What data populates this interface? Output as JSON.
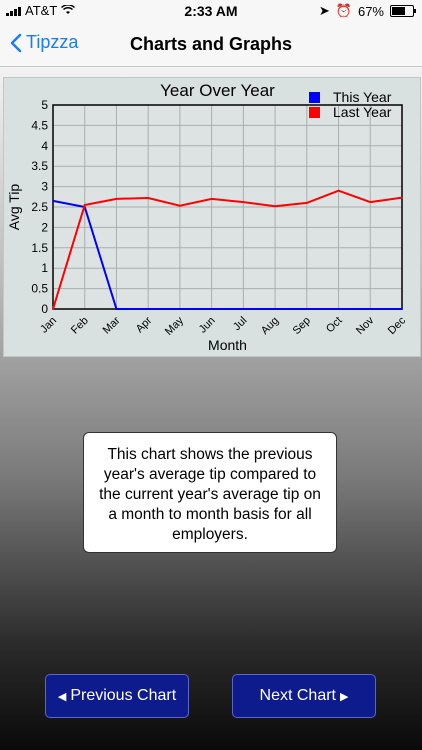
{
  "status": {
    "carrier": "AT&T",
    "time": "2:33 AM",
    "battery": "67%"
  },
  "nav": {
    "back_label": "Tipzza",
    "title": "Charts and Graphs"
  },
  "chart_data": {
    "type": "line",
    "title": "Year Over Year",
    "xlabel": "Month",
    "ylabel": "Avg Tip",
    "categories": [
      "Jan",
      "Feb",
      "Mar",
      "Apr",
      "May",
      "Jun",
      "Jul",
      "Aug",
      "Sep",
      "Oct",
      "Nov",
      "Dec"
    ],
    "ylim": [
      0,
      5
    ],
    "yticks": [
      "0",
      "0.5",
      "1",
      "1.5",
      "2",
      "2.5",
      "3",
      "3.5",
      "4",
      "4.5",
      "5"
    ],
    "grid": true,
    "legend_position": "top-right",
    "series": [
      {
        "name": "This Year",
        "color": "#0000ff",
        "values": [
          2.65,
          2.5,
          0,
          0,
          0,
          0,
          0,
          0,
          0,
          0,
          0,
          0
        ]
      },
      {
        "name": "Last Year",
        "color": "#ff0000",
        "values": [
          0,
          2.55,
          2.7,
          2.72,
          2.53,
          2.7,
          2.62,
          2.52,
          2.6,
          2.9,
          2.62,
          2.73
        ]
      }
    ]
  },
  "info": {
    "text": "This chart shows the previous year's average tip compared to the current year's average tip on a month to month basis for all employers."
  },
  "buttons": {
    "prev_label": "Previous Chart",
    "next_label": "Next Chart"
  }
}
